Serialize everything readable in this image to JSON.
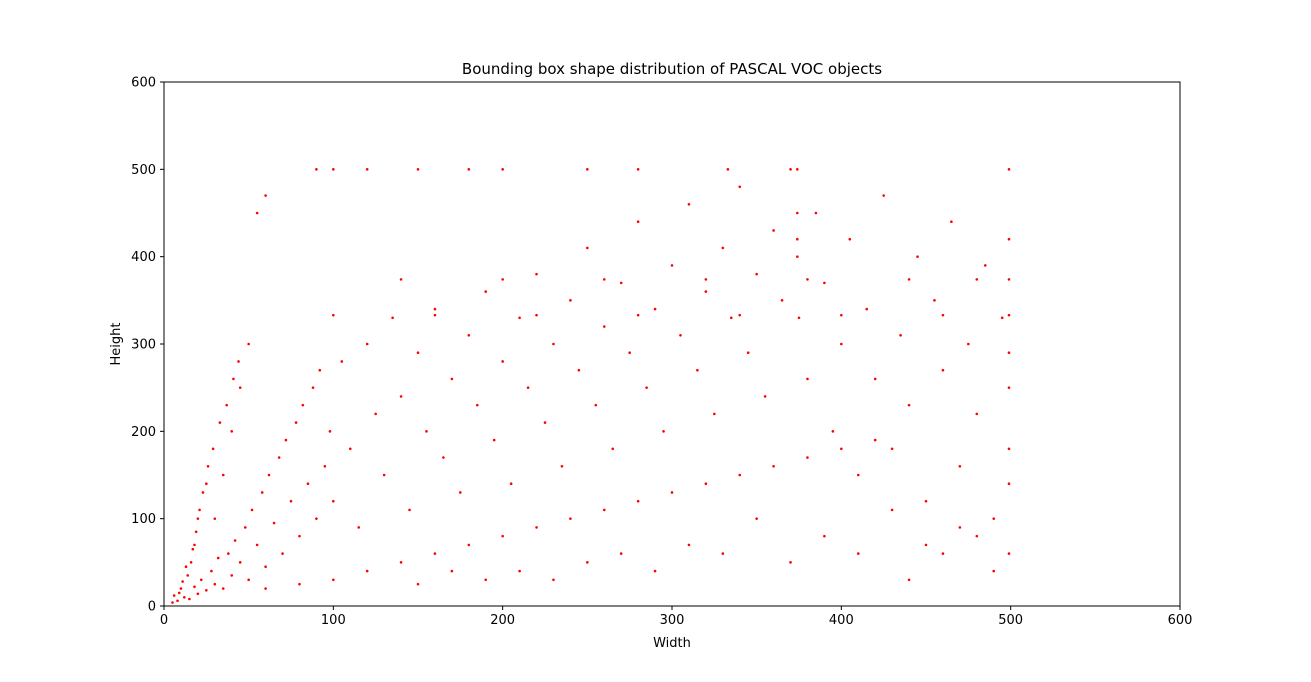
{
  "chart_data": {
    "type": "scatter",
    "title": "Bounding box shape distribution of PASCAL VOC objects",
    "xlabel": "Width",
    "ylabel": "Height",
    "xlim": [
      0,
      600
    ],
    "ylim": [
      0,
      600
    ],
    "xticks": [
      0,
      100,
      200,
      300,
      400,
      500,
      600
    ],
    "yticks": [
      0,
      100,
      200,
      300,
      400,
      500,
      600
    ],
    "grid": false,
    "legend": "none",
    "marker_color": "#ff0000",
    "series": [
      {
        "points": [
          [
            8,
            6
          ],
          [
            12,
            10
          ],
          [
            15,
            8
          ],
          [
            18,
            22
          ],
          [
            20,
            14
          ],
          [
            22,
            30
          ],
          [
            25,
            18
          ],
          [
            28,
            40
          ],
          [
            30,
            25
          ],
          [
            32,
            55
          ],
          [
            35,
            20
          ],
          [
            38,
            60
          ],
          [
            40,
            35
          ],
          [
            42,
            75
          ],
          [
            45,
            50
          ],
          [
            48,
            90
          ],
          [
            50,
            30
          ],
          [
            52,
            110
          ],
          [
            55,
            70
          ],
          [
            58,
            130
          ],
          [
            60,
            45
          ],
          [
            62,
            150
          ],
          [
            65,
            95
          ],
          [
            68,
            170
          ],
          [
            70,
            60
          ],
          [
            72,
            190
          ],
          [
            75,
            120
          ],
          [
            78,
            210
          ],
          [
            80,
            80
          ],
          [
            82,
            230
          ],
          [
            85,
            140
          ],
          [
            88,
            250
          ],
          [
            90,
            100
          ],
          [
            92,
            270
          ],
          [
            95,
            160
          ],
          [
            98,
            200
          ],
          [
            100,
            120
          ],
          [
            105,
            280
          ],
          [
            110,
            180
          ],
          [
            115,
            90
          ],
          [
            120,
            300
          ],
          [
            125,
            220
          ],
          [
            130,
            150
          ],
          [
            135,
            330
          ],
          [
            140,
            240
          ],
          [
            145,
            110
          ],
          [
            150,
            290
          ],
          [
            155,
            200
          ],
          [
            160,
            340
          ],
          [
            165,
            170
          ],
          [
            170,
            260
          ],
          [
            175,
            130
          ],
          [
            180,
            310
          ],
          [
            185,
            230
          ],
          [
            190,
            360
          ],
          [
            195,
            190
          ],
          [
            200,
            280
          ],
          [
            205,
            140
          ],
          [
            210,
            330
          ],
          [
            215,
            250
          ],
          [
            220,
            380
          ],
          [
            225,
            210
          ],
          [
            230,
            300
          ],
          [
            235,
            160
          ],
          [
            240,
            350
          ],
          [
            245,
            270
          ],
          [
            250,
            410
          ],
          [
            255,
            230
          ],
          [
            260,
            320
          ],
          [
            265,
            180
          ],
          [
            270,
            370
          ],
          [
            275,
            290
          ],
          [
            280,
            440
          ],
          [
            285,
            250
          ],
          [
            290,
            340
          ],
          [
            295,
            200
          ],
          [
            300,
            390
          ],
          [
            305,
            310
          ],
          [
            310,
            460
          ],
          [
            315,
            270
          ],
          [
            320,
            360
          ],
          [
            325,
            220
          ],
          [
            330,
            410
          ],
          [
            335,
            330
          ],
          [
            340,
            480
          ],
          [
            345,
            290
          ],
          [
            350,
            380
          ],
          [
            355,
            240
          ],
          [
            360,
            430
          ],
          [
            365,
            350
          ],
          [
            370,
            500
          ],
          [
            375,
            330
          ],
          [
            380,
            260
          ],
          [
            385,
            450
          ],
          [
            390,
            370
          ],
          [
            395,
            200
          ],
          [
            400,
            300
          ],
          [
            405,
            420
          ],
          [
            410,
            150
          ],
          [
            415,
            340
          ],
          [
            420,
            260
          ],
          [
            425,
            470
          ],
          [
            430,
            180
          ],
          [
            435,
            310
          ],
          [
            440,
            230
          ],
          [
            445,
            400
          ],
          [
            450,
            120
          ],
          [
            455,
            350
          ],
          [
            460,
            270
          ],
          [
            465,
            440
          ],
          [
            470,
            160
          ],
          [
            475,
            300
          ],
          [
            480,
            220
          ],
          [
            485,
            390
          ],
          [
            490,
            100
          ],
          [
            495,
            330
          ],
          [
            499,
            250
          ],
          [
            499,
            374
          ],
          [
            499,
            333
          ],
          [
            499,
            180
          ],
          [
            499,
            60
          ],
          [
            499,
            420
          ],
          [
            499,
            500
          ],
          [
            499,
            290
          ],
          [
            499,
            140
          ],
          [
            374,
            500
          ],
          [
            374,
            450
          ],
          [
            374,
            420
          ],
          [
            374,
            400
          ],
          [
            333,
            500
          ],
          [
            280,
            500
          ],
          [
            250,
            500
          ],
          [
            200,
            500
          ],
          [
            180,
            500
          ],
          [
            150,
            500
          ],
          [
            120,
            500
          ],
          [
            100,
            500
          ],
          [
            90,
            500
          ],
          [
            60,
            470
          ],
          [
            55,
            450
          ],
          [
            140,
            374
          ],
          [
            200,
            374
          ],
          [
            260,
            374
          ],
          [
            320,
            374
          ],
          [
            380,
            374
          ],
          [
            440,
            374
          ],
          [
            480,
            374
          ],
          [
            100,
            333
          ],
          [
            160,
            333
          ],
          [
            220,
            333
          ],
          [
            280,
            333
          ],
          [
            340,
            333
          ],
          [
            400,
            333
          ],
          [
            460,
            333
          ],
          [
            30,
            100
          ],
          [
            35,
            150
          ],
          [
            40,
            200
          ],
          [
            45,
            250
          ],
          [
            50,
            300
          ],
          [
            25,
            140
          ],
          [
            20,
            100
          ],
          [
            18,
            70
          ],
          [
            16,
            50
          ],
          [
            14,
            35
          ],
          [
            10,
            20
          ],
          [
            6,
            12
          ],
          [
            5,
            4
          ],
          [
            9,
            15
          ],
          [
            11,
            28
          ],
          [
            13,
            45
          ],
          [
            17,
            65
          ],
          [
            19,
            85
          ],
          [
            21,
            110
          ],
          [
            23,
            130
          ],
          [
            26,
            160
          ],
          [
            29,
            180
          ],
          [
            33,
            210
          ],
          [
            37,
            230
          ],
          [
            41,
            260
          ],
          [
            44,
            280
          ],
          [
            60,
            20
          ],
          [
            80,
            25
          ],
          [
            100,
            30
          ],
          [
            120,
            40
          ],
          [
            140,
            50
          ],
          [
            160,
            60
          ],
          [
            180,
            70
          ],
          [
            200,
            80
          ],
          [
            220,
            90
          ],
          [
            240,
            100
          ],
          [
            260,
            110
          ],
          [
            280,
            120
          ],
          [
            300,
            130
          ],
          [
            320,
            140
          ],
          [
            340,
            150
          ],
          [
            360,
            160
          ],
          [
            380,
            170
          ],
          [
            400,
            180
          ],
          [
            420,
            190
          ],
          [
            440,
            30
          ],
          [
            460,
            60
          ],
          [
            480,
            80
          ],
          [
            490,
            40
          ],
          [
            470,
            90
          ],
          [
            450,
            70
          ],
          [
            430,
            110
          ],
          [
            410,
            60
          ],
          [
            390,
            80
          ],
          [
            370,
            50
          ],
          [
            350,
            100
          ],
          [
            330,
            60
          ],
          [
            310,
            70
          ],
          [
            290,
            40
          ],
          [
            270,
            60
          ],
          [
            250,
            50
          ],
          [
            230,
            30
          ],
          [
            210,
            40
          ],
          [
            190,
            30
          ],
          [
            170,
            40
          ],
          [
            150,
            25
          ]
        ]
      }
    ]
  }
}
